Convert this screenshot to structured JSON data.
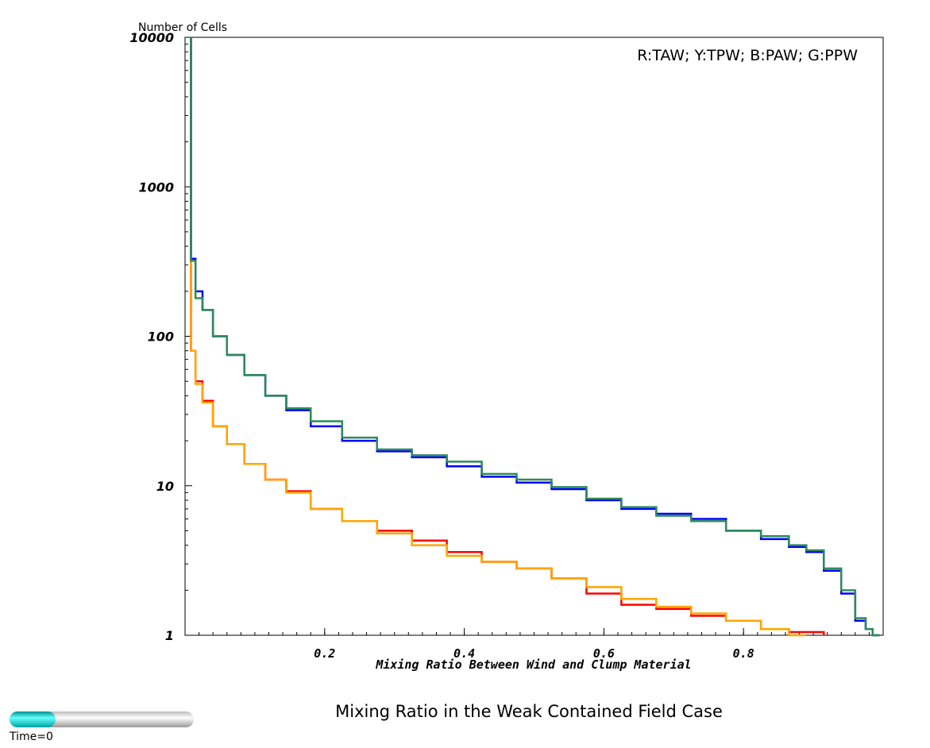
{
  "chart_data": {
    "type": "line",
    "title": "Mixing Ratio in the Weak Contained Field Case",
    "xlabel": "Mixing Ratio Between Wind and Clump Material",
    "ylabel": "Number of Cells",
    "legend_text": "R:TAW; Y:TPW; B:PAW; G:PPW",
    "legend_position": "top-right",
    "yscale": "log",
    "xlim": [
      0,
      1
    ],
    "ylim": [
      1,
      10000
    ],
    "x_ticks": [
      0.2,
      0.4,
      0.6,
      0.8
    ],
    "x_tick_labels": [
      "0.2",
      "0.4",
      "0.6",
      "0.8"
    ],
    "y_ticks": [
      1,
      10,
      100,
      1000,
      10000
    ],
    "y_tick_labels": [
      "1",
      "10",
      "100",
      "1000",
      "10000"
    ],
    "grid": false,
    "x": [
      0.01,
      0.02,
      0.03,
      0.05,
      0.07,
      0.1,
      0.13,
      0.16,
      0.2,
      0.25,
      0.3,
      0.35,
      0.4,
      0.45,
      0.5,
      0.55,
      0.6,
      0.65,
      0.7,
      0.75,
      0.8,
      0.85,
      0.88,
      0.9,
      0.93,
      0.95,
      0.97,
      0.98,
      0.99
    ],
    "series": [
      {
        "name": "R",
        "color": "#ff0000",
        "values": [
          80,
          50,
          37,
          25,
          19,
          14,
          11,
          9.2,
          7.0,
          5.8,
          5.0,
          4.3,
          3.6,
          3.1,
          2.8,
          2.4,
          1.9,
          1.6,
          1.5,
          1.35,
          1.25,
          1.1,
          1.05,
          1.05,
          null,
          null,
          null,
          null,
          null
        ]
      },
      {
        "name": "Y",
        "color": "#ffa500",
        "values": [
          80,
          48,
          36,
          25,
          19,
          14,
          11,
          9.0,
          7.0,
          5.8,
          4.8,
          4.0,
          3.4,
          3.1,
          2.8,
          2.4,
          2.1,
          1.75,
          1.55,
          1.4,
          1.25,
          1.1,
          1.0,
          null,
          null,
          null,
          null,
          null,
          null
        ]
      },
      {
        "name": "B",
        "color": "#0000ff",
        "values": [
          330,
          200,
          150,
          100,
          75,
          55,
          40,
          32,
          25,
          20,
          17,
          15.5,
          13.5,
          11.5,
          10.5,
          9.5,
          8.0,
          7.0,
          6.5,
          6.0,
          5.0,
          4.4,
          3.9,
          3.6,
          2.7,
          1.9,
          1.25,
          1.1,
          1.0
        ]
      },
      {
        "name": "G",
        "color": "#2e8b57",
        "values": [
          320,
          180,
          150,
          100,
          75,
          55,
          40,
          33,
          27,
          21,
          17.5,
          16,
          14.5,
          12,
          11,
          9.8,
          8.2,
          7.2,
          6.3,
          5.8,
          5.0,
          4.6,
          4.0,
          3.7,
          2.8,
          2.0,
          1.3,
          1.1,
          1.0
        ]
      }
    ]
  },
  "time_slider": {
    "label": "Time=0",
    "fraction": 0.25,
    "fill_color": "#00e5e5"
  }
}
